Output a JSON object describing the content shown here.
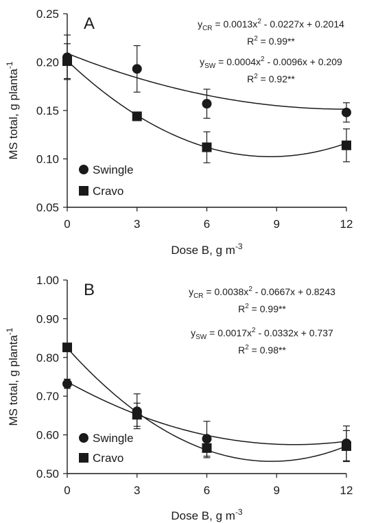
{
  "chart_data": [
    {
      "type": "scatter",
      "panel_label": "A",
      "xlabel": "Dose B, g m",
      "xlabel_sup": "-3",
      "ylabel": "MS total, g planta",
      "ylabel_sup": "-1",
      "x": [
        0,
        3,
        6,
        12
      ],
      "xticks": [
        "0",
        "3",
        "6",
        "9",
        "12"
      ],
      "yticks": [
        "0.05",
        "0.10",
        "0.15",
        "0.20",
        "0.25"
      ],
      "xlim": [
        0,
        12
      ],
      "ylim": [
        0.05,
        0.25
      ],
      "grid": false,
      "legend_position": "bottom-left",
      "series": [
        {
          "name": "Swingle",
          "marker": "circle",
          "values": [
            0.205,
            0.193,
            0.157,
            0.148
          ],
          "errors": [
            0.023,
            0.024,
            0.015,
            0.01
          ],
          "fit": [
            0.0004,
            -0.0096,
            0.209
          ]
        },
        {
          "name": "Cravo",
          "marker": "square",
          "values": [
            0.201,
            0.144,
            0.112,
            0.114
          ],
          "errors": [
            0.018,
            0.004,
            0.016,
            0.017
          ],
          "fit": [
            0.0013,
            -0.0227,
            0.2014
          ]
        }
      ],
      "equations": [
        {
          "y_sub": "CR",
          "rest": " = 0.0013x",
          "sq": "2",
          "tail": " - 0.0227x + 0.2014",
          "r2_val": " = 0.99**"
        },
        {
          "y_sub": "SW",
          "rest": " = 0.0004x",
          "sq": "2",
          "tail": " - 0.0096x + 0.209",
          "r2_val": " = 0.92**"
        }
      ]
    },
    {
      "type": "scatter",
      "panel_label": "B",
      "xlabel": "Dose B, g m",
      "xlabel_sup": "-3",
      "ylabel": "MS total, g planta",
      "ylabel_sup": "-1",
      "x": [
        0,
        3,
        6,
        12
      ],
      "xticks": [
        "0",
        "3",
        "6",
        "9",
        "12"
      ],
      "yticks": [
        "0.50",
        "0.60",
        "0.70",
        "0.80",
        "0.90",
        "1.00"
      ],
      "xlim": [
        0,
        12
      ],
      "ylim": [
        0.5,
        1.0
      ],
      "grid": false,
      "legend_position": "bottom-left",
      "series": [
        {
          "name": "Swingle",
          "marker": "circle",
          "values": [
            0.732,
            0.661,
            0.59,
            0.578
          ],
          "errors": [
            0.012,
            0.045,
            0.045,
            0.045
          ],
          "fit": [
            0.0017,
            -0.0332,
            0.737
          ]
        },
        {
          "name": "Cravo",
          "marker": "square",
          "values": [
            0.826,
            0.652,
            0.566,
            0.571
          ],
          "errors": [
            0.01,
            0.03,
            0.025,
            0.04
          ],
          "fit": [
            0.0038,
            -0.0667,
            0.8243
          ]
        }
      ],
      "equations": [
        {
          "y_sub": "CR",
          "rest": " = 0.0038x",
          "sq": "2",
          "tail": " - 0.0667x + 0.8243",
          "r2_val": " = 0.99**"
        },
        {
          "y_sub": "SW",
          "rest": " = 0.0017x",
          "sq": "2",
          "tail": " - 0.0332x + 0.737",
          "r2_val": " = 0.98**"
        }
      ]
    }
  ]
}
